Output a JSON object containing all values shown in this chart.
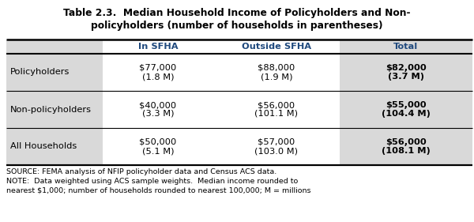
{
  "title_line1": "Table 2.3.  Median Household Income of Policyholders and Non-",
  "title_line2": "policyholders (number of households in parentheses)",
  "col_headers": [
    "",
    "In SFHA",
    "Outside SFHA",
    "Total"
  ],
  "rows": [
    {
      "label": "Policyholders",
      "in_sfha_1": "$77,000",
      "in_sfha_2": "(1.8 M)",
      "out_sfha_1": "$88,000",
      "out_sfha_2": "(1.9 M)",
      "total_1": "$82,000",
      "total_2": "(3.7 M)"
    },
    {
      "label": "Non-policyholders",
      "in_sfha_1": "$40,000",
      "in_sfha_2": "(3.3 M)",
      "out_sfha_1": "$56,000",
      "out_sfha_2": "(101.1 M)",
      "total_1": "$55,000",
      "total_2": "(104.4 M)"
    },
    {
      "label": "All Households",
      "in_sfha_1": "$50,000",
      "in_sfha_2": "(5.1 M)",
      "out_sfha_1": "$57,000",
      "out_sfha_2": "(103.0 M)",
      "total_1": "$56,000",
      "total_2": "(108.1 M)"
    }
  ],
  "source_line1": "SOURCE: FEMA analysis of NFIP policyholder data and Census ACS data.",
  "source_line2": "NOTE:  Data weighted using ACS sample weights.  Median income rounded to",
  "source_line3": "nearest $1,000; number of households rounded to nearest 100,000; M = millions",
  "header_bg": "#d9d9d9",
  "row_label_bg": "#d9d9d9",
  "total_col_bg": "#d9d9d9",
  "white_bg": "#ffffff",
  "header_text_color": "#1f497d",
  "body_text_color": "#000000",
  "title_color": "#000000",
  "fig_bg": "#ffffff",
  "title_fontsize": 8.8,
  "header_fontsize": 8.2,
  "body_fontsize": 8.2,
  "source_fontsize": 6.8,
  "label_fontsize": 8.2
}
